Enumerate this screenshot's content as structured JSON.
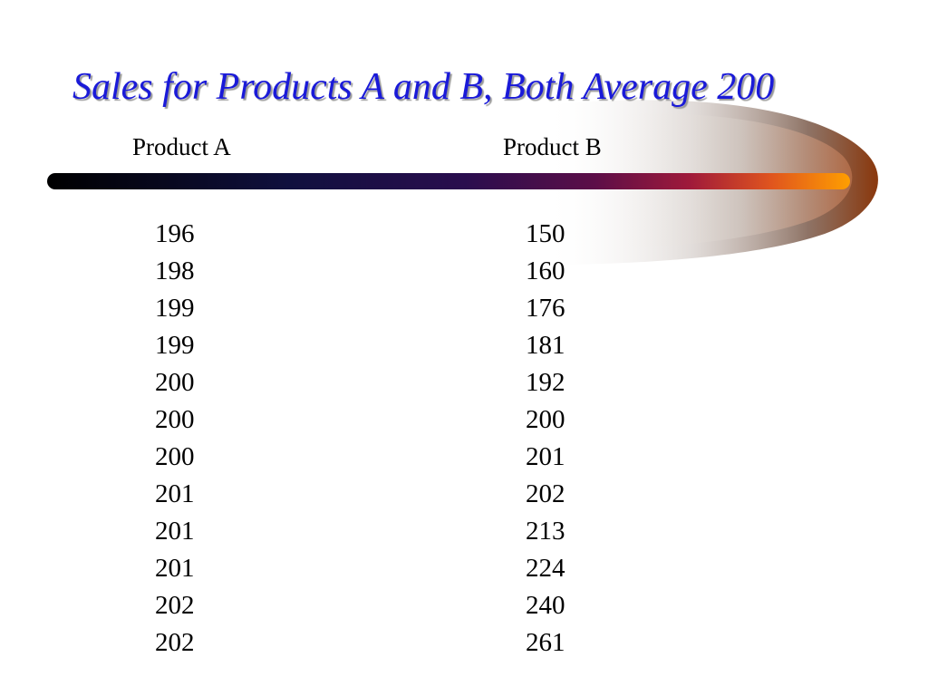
{
  "slide": {
    "title": "Sales for Products A and B, Both Average 200",
    "colors": {
      "title": "#1a1ad8",
      "bar_start": "#000000",
      "bar_mid": "#1a0a55",
      "bar_end": "#ff9a00",
      "text": "#000000"
    },
    "columns": [
      {
        "header": "Product A",
        "values": [
          "196",
          "198",
          "199",
          "199",
          "200",
          "200",
          "200",
          "201",
          "201",
          "201",
          "202",
          "202"
        ]
      },
      {
        "header": "Product B",
        "values": [
          "150",
          "160",
          "176",
          "181",
          "192",
          "200",
          "201",
          "202",
          "213",
          "224",
          "240",
          "261"
        ]
      }
    ]
  }
}
